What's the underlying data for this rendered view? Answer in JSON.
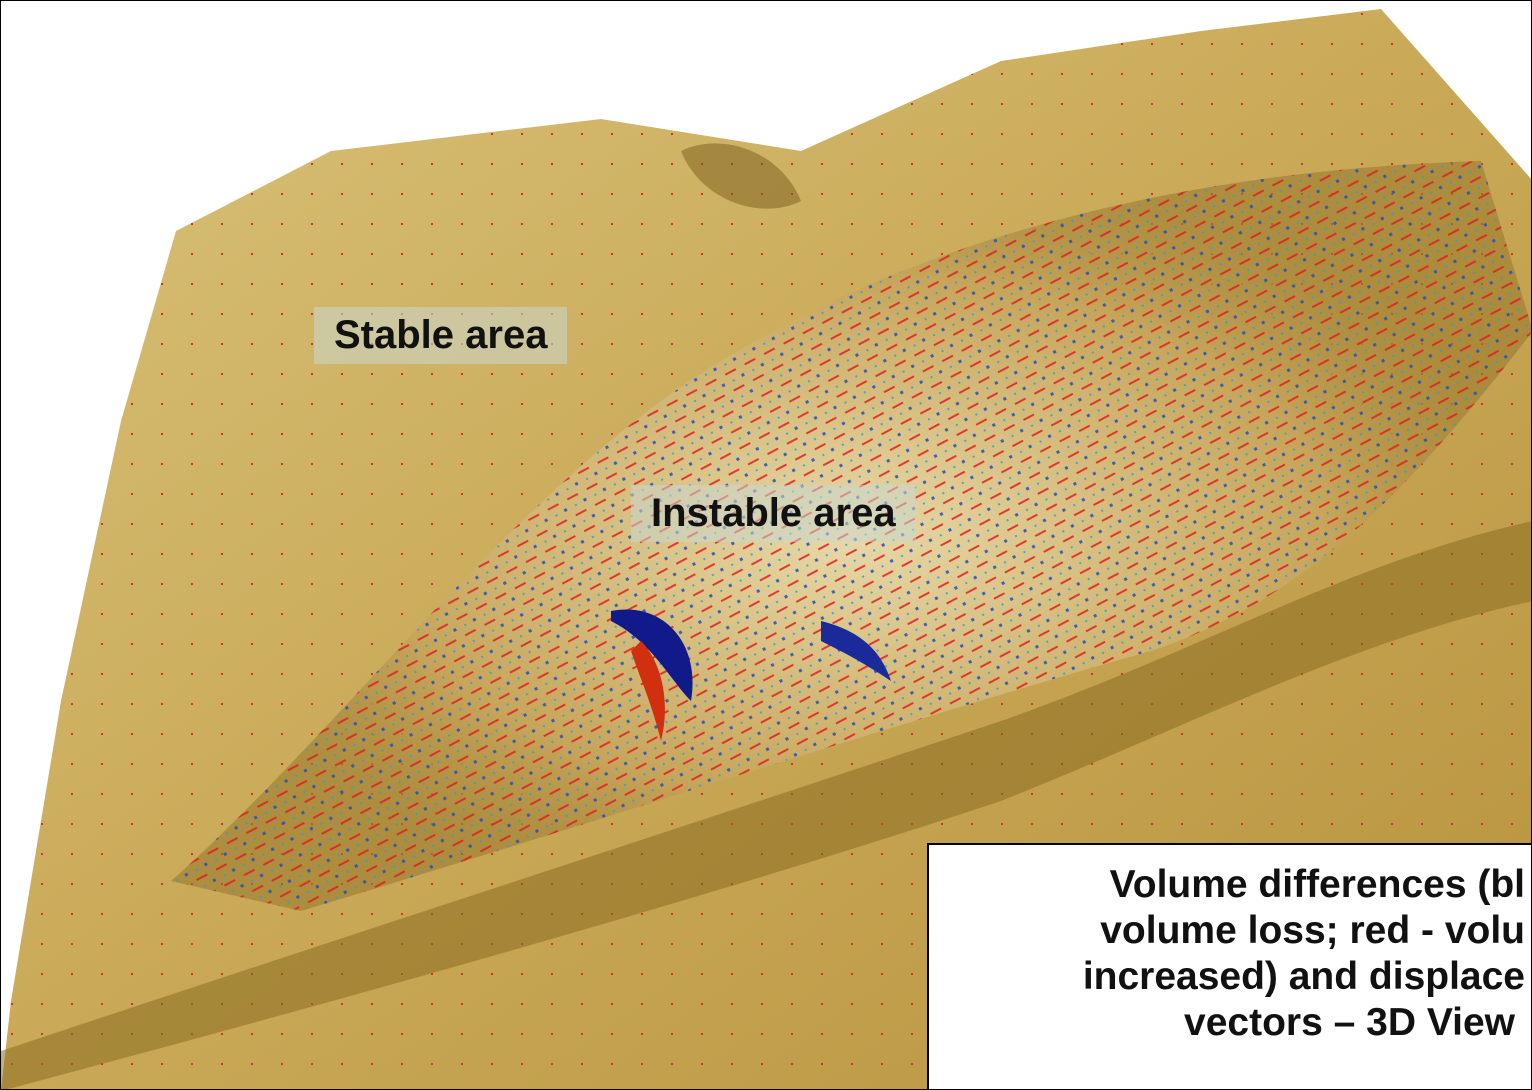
{
  "labels": {
    "stable": "Stable area",
    "instable": "Instable area"
  },
  "caption": {
    "lines": [
      "Volume differences (bl",
      "volume loss; red - volu",
      "increased) and displace",
      "vectors – 3D View"
    ]
  }
}
